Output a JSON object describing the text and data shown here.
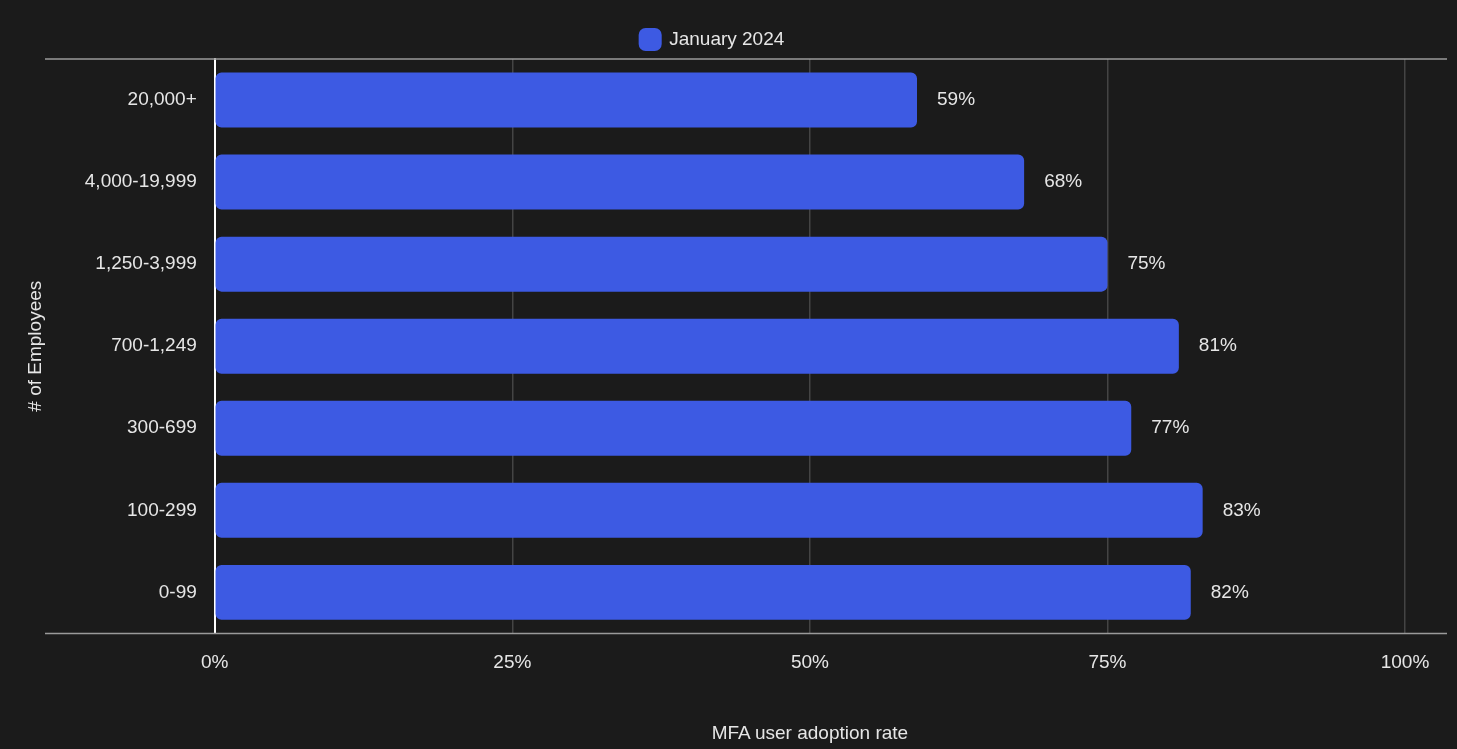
{
  "chart_data": {
    "type": "bar",
    "orientation": "horizontal",
    "xlabel": "MFA user adoption rate",
    "ylabel": "# of Employees",
    "categories": [
      "20,000+",
      "4,000-19,999",
      "1,250-3,999",
      "700-1,249",
      "300-699",
      "100-299",
      "0-99"
    ],
    "series": [
      {
        "name": "January 2024",
        "color": "#3d5ae3",
        "values": [
          59,
          68,
          75,
          81,
          77,
          83,
          82
        ]
      }
    ],
    "xlim": [
      0,
      100
    ],
    "xticks": [
      {
        "value": 0,
        "label": "0%"
      },
      {
        "value": 25,
        "label": "25%"
      },
      {
        "value": 50,
        "label": "50%"
      },
      {
        "value": 75,
        "label": "75%"
      },
      {
        "value": 100,
        "label": "100%"
      }
    ],
    "value_labels": [
      "59%",
      "68%",
      "75%",
      "81%",
      "77%",
      "83%",
      "82%"
    ],
    "grid": "x",
    "legend": "top"
  }
}
